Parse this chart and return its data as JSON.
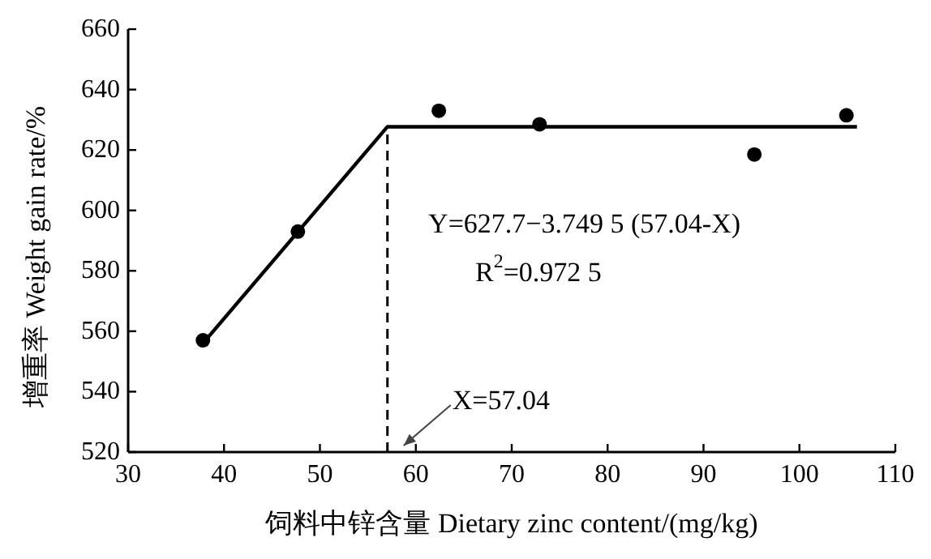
{
  "chart_data": {
    "type": "scatter",
    "xlabel": "饲料中锌含量 Dietary zinc content/(mg/kg)",
    "ylabel": "增重率 Weight gain rate/%",
    "xlim": [
      30,
      110
    ],
    "xticks": [
      30,
      40,
      50,
      60,
      70,
      80,
      90,
      100,
      110
    ],
    "ylim": [
      520,
      660
    ],
    "yticks": [
      520,
      540,
      560,
      580,
      600,
      620,
      640,
      660
    ],
    "marker": "circle",
    "series": [
      {
        "type": "scatter",
        "color": "#000000",
        "x": [
          37.8,
          47.7,
          62.4,
          72.9,
          95.3,
          104.9
        ],
        "values": [
          557,
          593,
          633,
          628.5,
          618.5,
          631.5
        ]
      },
      {
        "type": "line",
        "color": "#000000",
        "line_style": "solid",
        "marker": "none",
        "x": [
          37.8,
          57.04,
          106
        ],
        "values": [
          556,
          627.7,
          627.7
        ]
      },
      {
        "type": "line",
        "color": "#000000",
        "line_style": "dashed",
        "marker": "none",
        "x": [
          57.04,
          57.04
        ],
        "values": [
          520,
          627.7
        ]
      }
    ],
    "annotations": [
      "Y=627.7−3.749 5 (57.04-X)",
      "R$^{2}$=0.972 5",
      {
        "text": "X=57.04",
        "x": 57.04,
        "y": 520
      }
    ]
  }
}
